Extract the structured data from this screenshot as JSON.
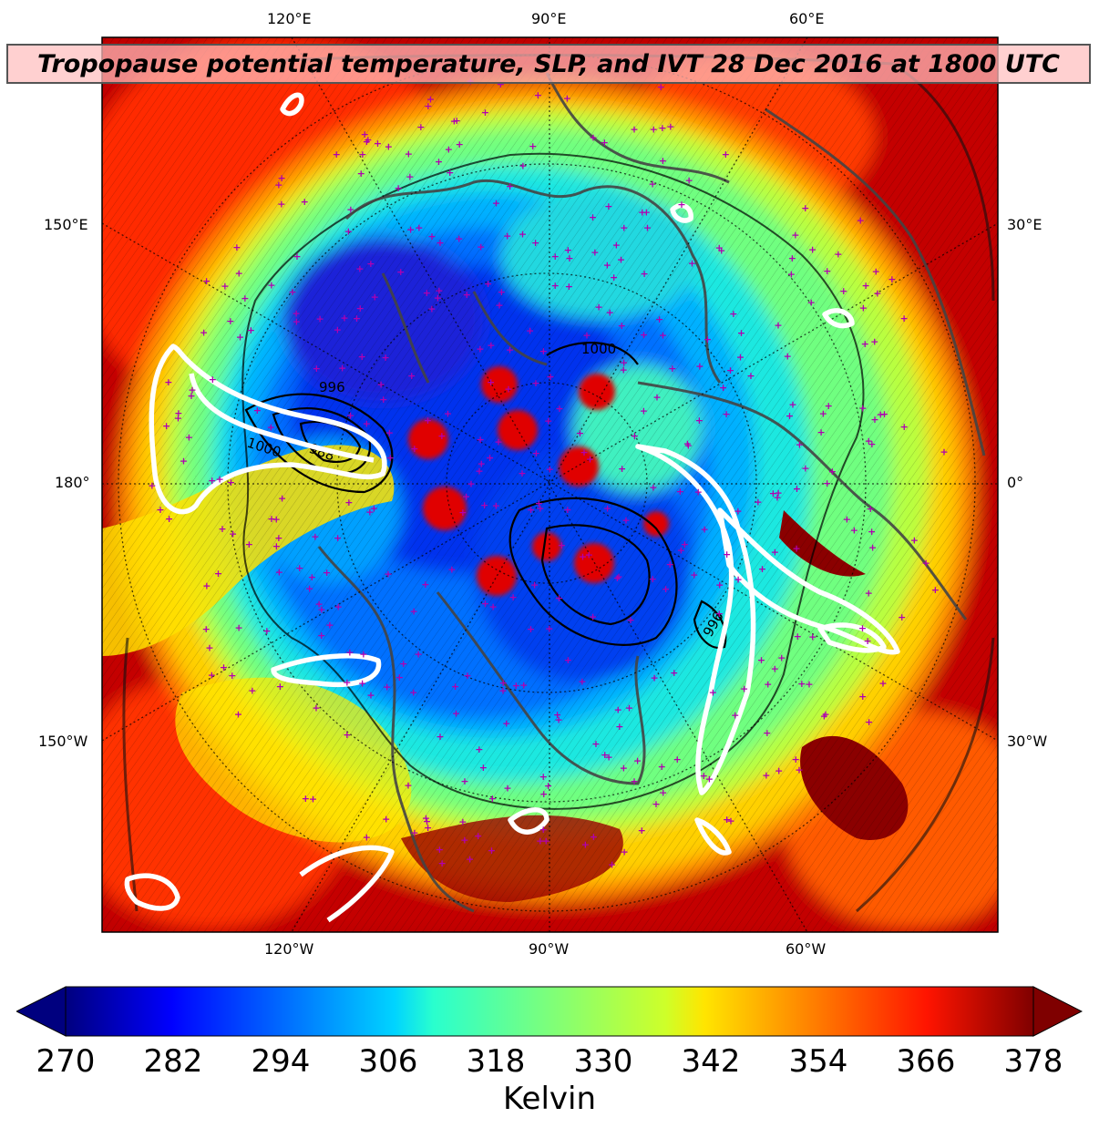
{
  "title": "Tropopause potential temperature, SLP, and IVT 28 Dec 2016 at 1800 UTC",
  "map": {
    "projection": "north-polar-stereographic",
    "field": "tropopause potential temperature",
    "overlays": [
      "sea level pressure contours",
      "IVT contours",
      "observation stations"
    ],
    "lon_labels": {
      "top": [
        "120°E",
        "90°E",
        "60°E"
      ],
      "bottom": [
        "120°W",
        "90°W",
        "60°W"
      ],
      "left": [
        "150°E",
        "180°",
        "150°W"
      ],
      "right": [
        "30°E",
        "0°",
        "30°W"
      ]
    },
    "slp_labels": [
      "1000",
      "1000",
      "988",
      "996",
      "996"
    ],
    "colors": {
      "station_marker": "#b000b0",
      "coastline": "#444444",
      "ivt_contour": "#ffffff",
      "slp_contour": "#000000"
    }
  },
  "colorbar": {
    "colormap": "jet",
    "min": 270,
    "max": 378,
    "extend": "both",
    "ticks": [
      "270",
      "282",
      "294",
      "306",
      "318",
      "330",
      "342",
      "354",
      "366",
      "378"
    ],
    "label": "Kelvin"
  }
}
